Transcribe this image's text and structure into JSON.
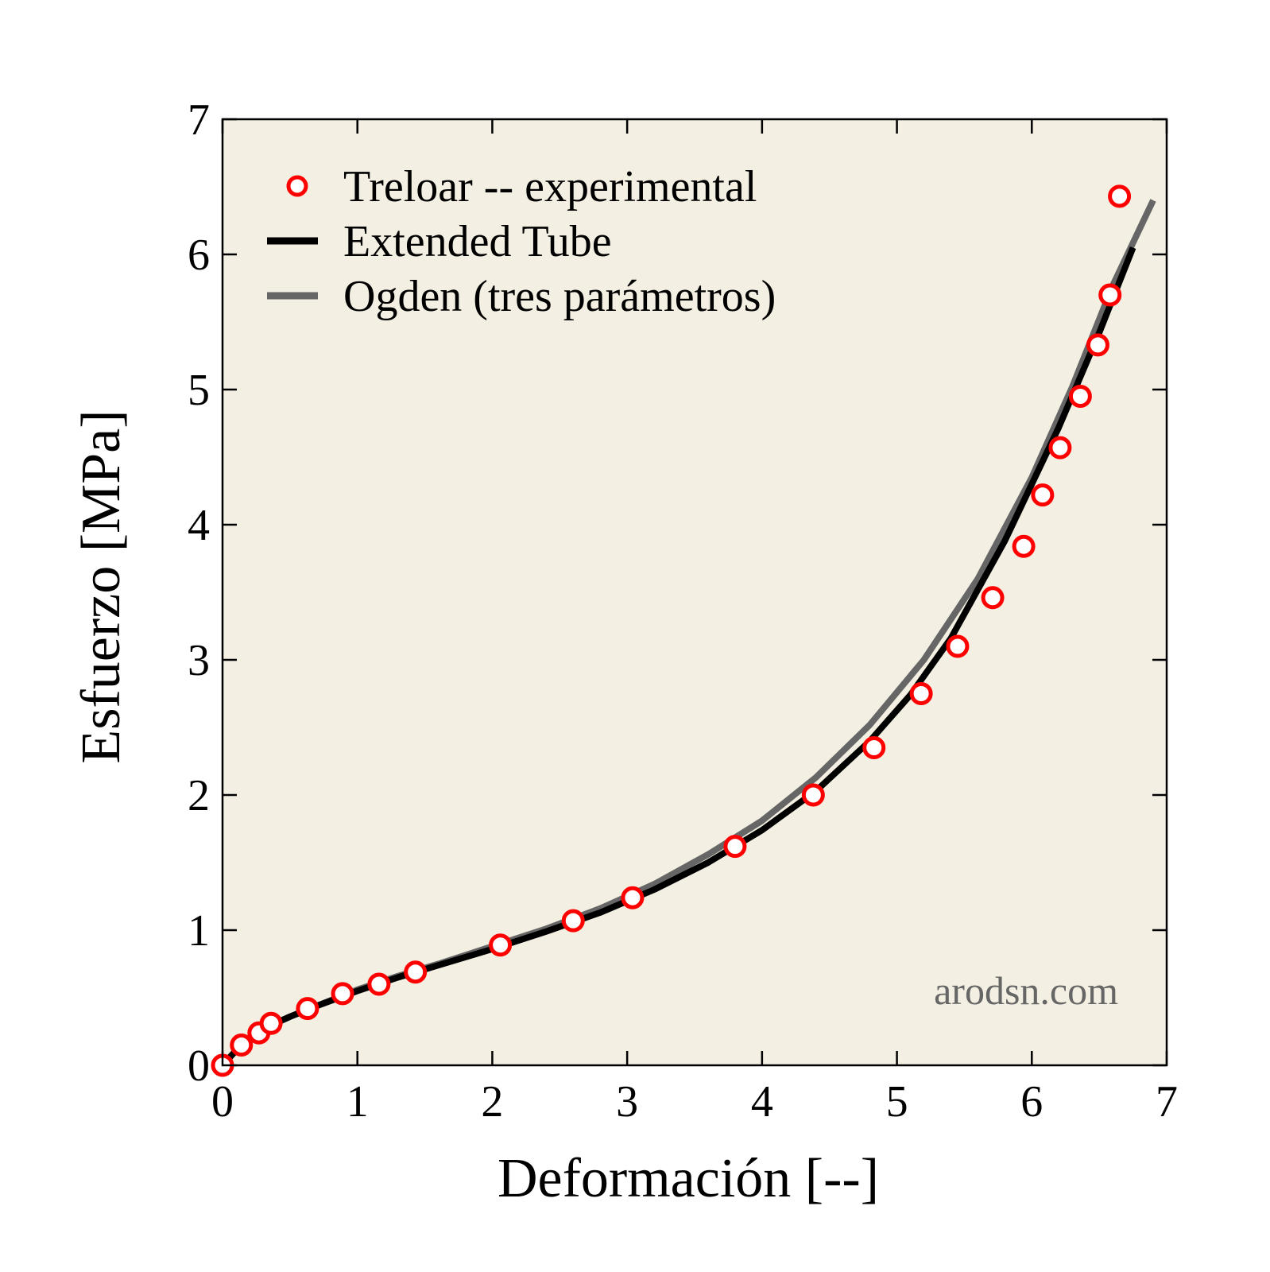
{
  "chart_data": {
    "type": "line",
    "title": "",
    "xlabel": "Deformación [--]",
    "ylabel": "Esfuerzo [MPa]",
    "xlim": [
      0,
      7
    ],
    "ylim": [
      0,
      7
    ],
    "xticks": [
      "0",
      "1",
      "2",
      "3",
      "4",
      "5",
      "6",
      "7"
    ],
    "yticks": [
      "0",
      "1",
      "2",
      "3",
      "4",
      "5",
      "6",
      "7"
    ],
    "grid": false,
    "legend_position": "top-left",
    "background_color": "#f3efe2",
    "watermark": "arodsn.com",
    "series": [
      {
        "name": "Treloar -- experimental",
        "kind": "scatter",
        "color": "#ff0000",
        "x": [
          0.0,
          0.14,
          0.27,
          0.36,
          0.63,
          0.89,
          1.16,
          1.43,
          2.06,
          2.6,
          3.04,
          3.8,
          4.38,
          4.83,
          5.18,
          5.45,
          5.71,
          5.94,
          6.08,
          6.21,
          6.36,
          6.49,
          6.58,
          6.65
        ],
        "y": [
          0.0,
          0.15,
          0.24,
          0.31,
          0.42,
          0.53,
          0.6,
          0.69,
          0.89,
          1.07,
          1.24,
          1.62,
          2.0,
          2.35,
          2.75,
          3.1,
          3.46,
          3.84,
          4.22,
          4.57,
          4.95,
          5.33,
          5.7,
          6.43
        ]
      },
      {
        "name": "Extended Tube",
        "kind": "line",
        "color": "#000000",
        "x": [
          0.0,
          0.1,
          0.2,
          0.3,
          0.5,
          0.7,
          1.0,
          1.3,
          1.6,
          2.0,
          2.4,
          2.8,
          3.2,
          3.6,
          4.0,
          4.4,
          4.8,
          5.1,
          5.4,
          5.8,
          6.2,
          6.5,
          6.75
        ],
        "y": [
          0.0,
          0.11,
          0.2,
          0.27,
          0.36,
          0.44,
          0.55,
          0.65,
          0.74,
          0.86,
          0.99,
          1.13,
          1.3,
          1.5,
          1.74,
          2.03,
          2.4,
          2.74,
          3.16,
          3.88,
          4.72,
          5.42,
          6.05
        ]
      },
      {
        "name": "Ogden (tres parámetros)",
        "kind": "line",
        "color": "#666666",
        "x": [
          0.0,
          0.1,
          0.2,
          0.3,
          0.5,
          0.7,
          1.0,
          1.3,
          1.6,
          2.0,
          2.4,
          2.8,
          3.2,
          3.6,
          4.0,
          4.4,
          4.8,
          5.2,
          5.6,
          6.0,
          6.3,
          6.6,
          6.9
        ],
        "y": [
          0.0,
          0.11,
          0.2,
          0.27,
          0.36,
          0.44,
          0.56,
          0.66,
          0.75,
          0.88,
          1.01,
          1.16,
          1.34,
          1.56,
          1.81,
          2.13,
          2.52,
          3.0,
          3.6,
          4.35,
          5.02,
          5.77,
          6.4
        ]
      }
    ]
  }
}
